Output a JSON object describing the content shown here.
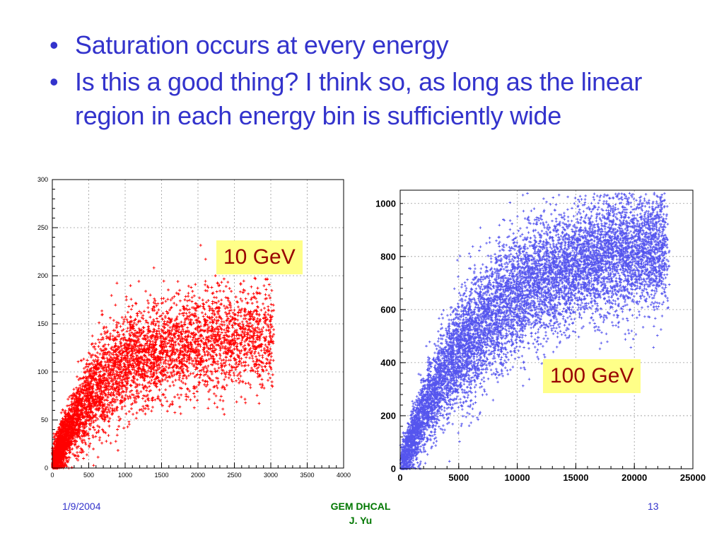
{
  "slide": {
    "bullets": [
      "Saturation occurs at every energy",
      "Is this a good thing?  I think so, as long as the linear region in each energy bin is sufficiently wide"
    ],
    "bullet_char": "•",
    "footer": {
      "date": "1/9/2004",
      "title": "GEM DHCAL",
      "author": "J. Yu",
      "page": "13"
    }
  },
  "chart_data": [
    {
      "type": "scatter",
      "label": "10 GeV",
      "marker": "+",
      "color": "#ff0000",
      "grid": true,
      "legend": "top-right",
      "xlim": [
        0,
        4000
      ],
      "ylim": [
        0,
        300
      ],
      "xticks": [
        0,
        500,
        1000,
        1500,
        2000,
        2500,
        3000,
        3500,
        4000
      ],
      "yticks": [
        0,
        50,
        100,
        150,
        200,
        250,
        300
      ],
      "points_seed": 11,
      "points_count": 5500,
      "trend": {
        "knee_x": 700,
        "plateau_y": 140,
        "initial_slope": 0.2
      }
    },
    {
      "type": "scatter",
      "label": "100 GeV",
      "marker": "+",
      "color": "#5555ee",
      "grid": true,
      "legend": "bottom-right",
      "xlim": [
        0,
        25000
      ],
      "ylim": [
        0,
        1050
      ],
      "xticks": [
        0,
        5000,
        10000,
        15000,
        20000,
        25000
      ],
      "yticks": [
        0,
        200,
        400,
        600,
        800,
        1000
      ],
      "points_seed": 29,
      "points_count": 9000,
      "trend": {
        "knee_x": 6000,
        "plateau_y": 880,
        "initial_slope": 0.12
      }
    }
  ]
}
